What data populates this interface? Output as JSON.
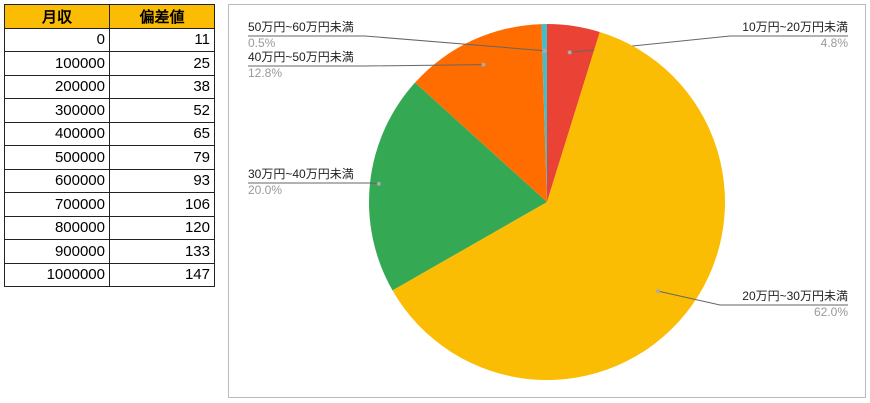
{
  "table": {
    "headers": [
      "月収",
      "偏差値"
    ],
    "rows": [
      [
        "0",
        "11"
      ],
      [
        "100000",
        "25"
      ],
      [
        "200000",
        "38"
      ],
      [
        "300000",
        "52"
      ],
      [
        "400000",
        "65"
      ],
      [
        "500000",
        "79"
      ],
      [
        "600000",
        "93"
      ],
      [
        "700000",
        "106"
      ],
      [
        "800000",
        "120"
      ],
      [
        "900000",
        "133"
      ],
      [
        "1000000",
        "147"
      ]
    ]
  },
  "chart_data": {
    "type": "pie",
    "start": "top",
    "direction": "clockwise",
    "slices": [
      {
        "label": "10万円~20万円未満",
        "value": 4.8,
        "text": "4.8%",
        "color": "#ea4335"
      },
      {
        "label": "20万円~30万円未満",
        "value": 62.0,
        "text": "62.0%",
        "color": "#fbbc04"
      },
      {
        "label": "30万円~40万円未満",
        "value": 20.0,
        "text": "20.0%",
        "color": "#34a853"
      },
      {
        "label": "40万円~50万円未満",
        "value": 12.8,
        "text": "12.8%",
        "color": "#ff6d01"
      },
      {
        "label": "50万円~60万円未満",
        "value": 0.5,
        "text": "0.5%",
        "color": "#46bdc6"
      }
    ]
  }
}
